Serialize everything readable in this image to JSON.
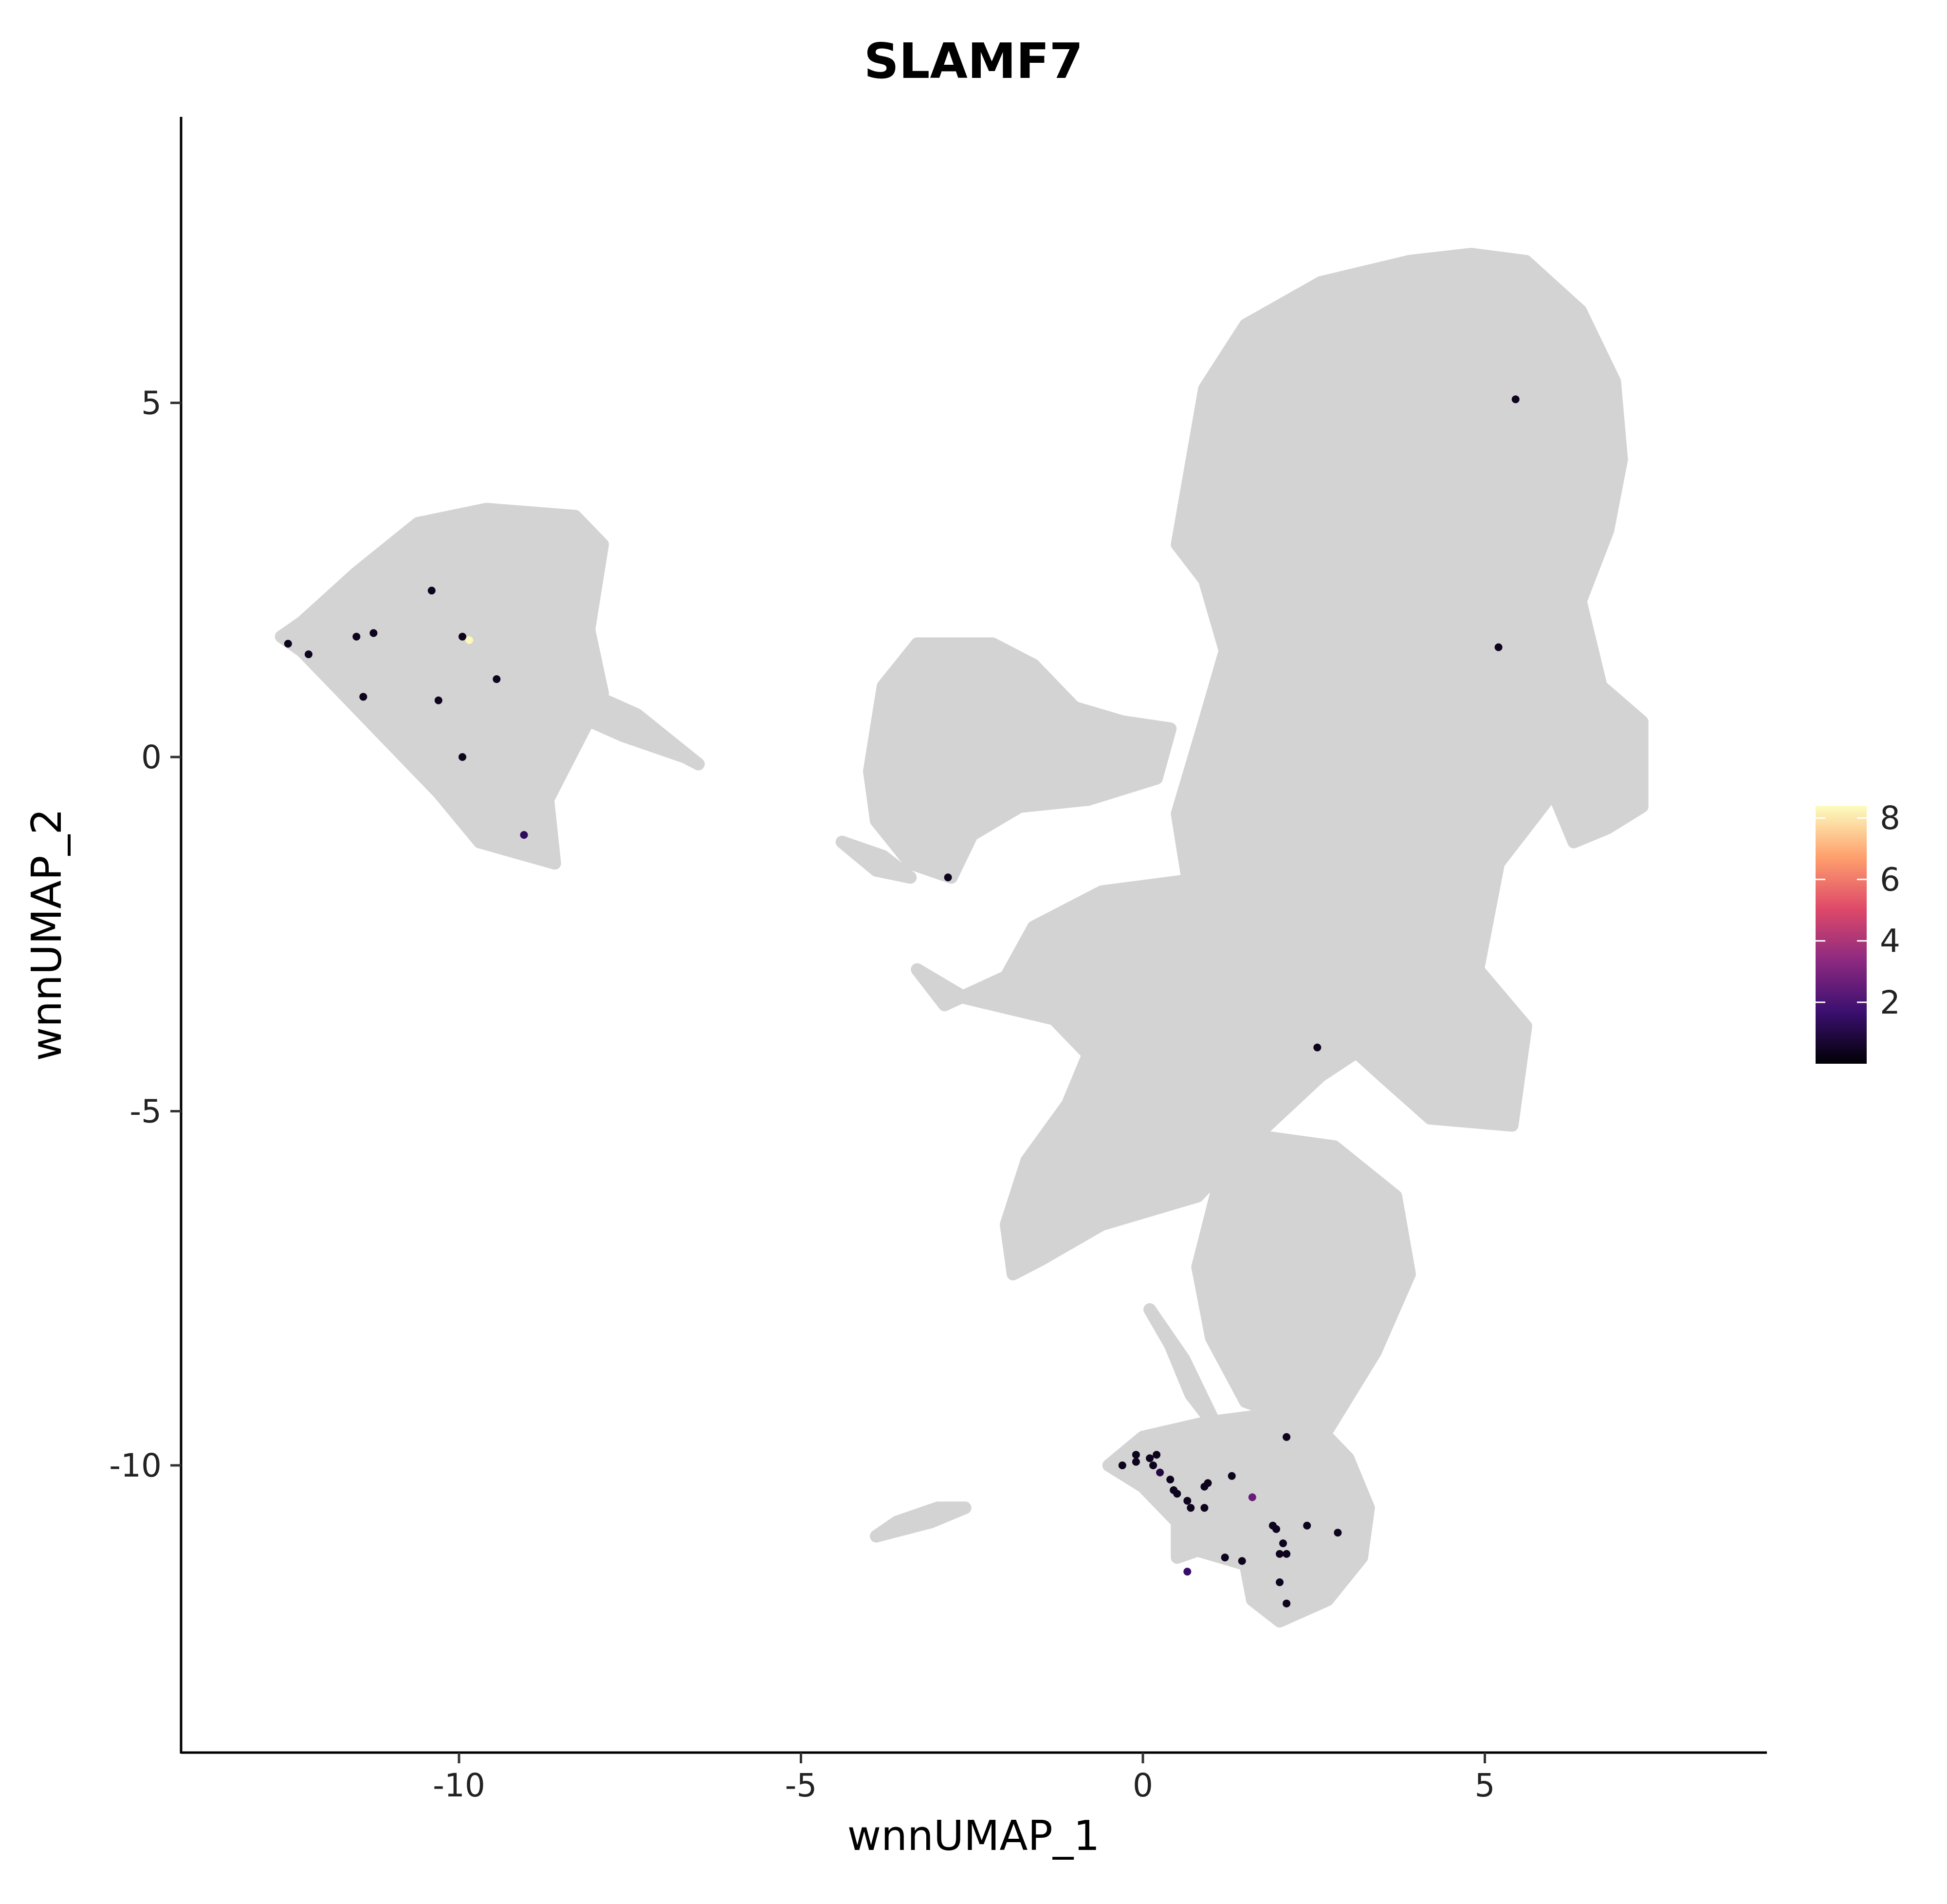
{
  "chart_data": {
    "type": "scatter",
    "title": "SLAMF7",
    "xlabel": "wnnUMAP_1",
    "ylabel": "wnnUMAP_2",
    "xlim": [
      -14.2,
      9
    ],
    "ylim": [
      -14,
      9
    ],
    "x_ticks": [
      {
        "value": -10,
        "label": "-10"
      },
      {
        "value": -5,
        "label": "-5"
      },
      {
        "value": 0,
        "label": "0"
      },
      {
        "value": 5,
        "label": "5"
      }
    ],
    "y_ticks": [
      {
        "value": 5,
        "label": "5"
      },
      {
        "value": 0,
        "label": "0"
      },
      {
        "value": -5,
        "label": "-5"
      },
      {
        "value": -10,
        "label": "-10"
      }
    ],
    "grid": false,
    "background_point_color": "#d3d3d3",
    "colorscale": {
      "name": "magma",
      "min": 0,
      "max": 8.4,
      "colors": [
        "#000004",
        "#3b0f70",
        "#8c2981",
        "#de4968",
        "#fe9f6d",
        "#fcfdbf"
      ],
      "ticks": [
        {
          "value": 2,
          "label": "2"
        },
        {
          "value": 4,
          "label": "4"
        },
        {
          "value": 6,
          "label": "6"
        },
        {
          "value": 8,
          "label": "8"
        }
      ],
      "legend_position": "right"
    },
    "background_clusters": [
      {
        "polygon": [
          [
            -12.6,
            1.7
          ],
          [
            -12.3,
            1.9
          ],
          [
            -11.5,
            2.6
          ],
          [
            -10.6,
            3.3
          ],
          [
            -9.6,
            3.5
          ],
          [
            -8.3,
            3.4
          ],
          [
            -7.9,
            3.0
          ],
          [
            -8.1,
            1.8
          ],
          [
            -7.9,
            0.9
          ],
          [
            -8.7,
            -0.6
          ],
          [
            -8.6,
            -1.5
          ],
          [
            -9.7,
            -1.2
          ],
          [
            -10.3,
            -0.5
          ],
          [
            -11.6,
            0.8
          ],
          [
            -12.3,
            1.5
          ]
        ]
      },
      {
        "polygon": [
          [
            -8.1,
            0.9
          ],
          [
            -7.4,
            0.6
          ],
          [
            -6.5,
            -0.1
          ],
          [
            -6.7,
            0.0
          ],
          [
            -7.6,
            0.3
          ],
          [
            -8.3,
            0.6
          ]
        ]
      },
      {
        "polygon": [
          [
            -4.0,
            -0.2
          ],
          [
            -3.8,
            1.0
          ],
          [
            -3.3,
            1.6
          ],
          [
            -2.2,
            1.6
          ],
          [
            -1.6,
            1.3
          ],
          [
            -1.0,
            0.7
          ],
          [
            -0.3,
            0.5
          ],
          [
            0.4,
            0.4
          ],
          [
            0.2,
            -0.3
          ],
          [
            -0.8,
            -0.6
          ],
          [
            -1.8,
            -0.7
          ],
          [
            -2.5,
            -1.1
          ],
          [
            -2.8,
            -1.7
          ],
          [
            -3.4,
            -1.5
          ],
          [
            -3.9,
            -0.9
          ]
        ]
      },
      {
        "polygon": [
          [
            -4.4,
            -1.2
          ],
          [
            -3.8,
            -1.4
          ],
          [
            -3.4,
            -1.7
          ],
          [
            -3.9,
            -1.6
          ]
        ]
      },
      {
        "polygon": [
          [
            0.5,
            3.0
          ],
          [
            0.9,
            5.2
          ],
          [
            1.5,
            6.1
          ],
          [
            2.6,
            6.7
          ],
          [
            3.9,
            7.0
          ],
          [
            4.8,
            7.1
          ],
          [
            5.6,
            7.0
          ],
          [
            6.4,
            6.3
          ],
          [
            6.9,
            5.3
          ],
          [
            7.0,
            4.2
          ],
          [
            6.8,
            3.2
          ],
          [
            6.4,
            2.2
          ],
          [
            6.7,
            1.0
          ],
          [
            7.3,
            0.5
          ],
          [
            7.3,
            -0.7
          ],
          [
            6.8,
            -1.0
          ],
          [
            6.3,
            -1.2
          ],
          [
            6.0,
            -0.5
          ],
          [
            5.2,
            -1.5
          ],
          [
            4.9,
            -3.0
          ],
          [
            5.6,
            -3.8
          ],
          [
            5.4,
            -5.2
          ],
          [
            4.2,
            -5.1
          ],
          [
            3.5,
            -4.5
          ],
          [
            2.7,
            -3.8
          ],
          [
            1.5,
            -3.6
          ],
          [
            0.8,
            -2.6
          ],
          [
            0.5,
            -0.8
          ],
          [
            0.9,
            0.5
          ],
          [
            1.2,
            1.5
          ],
          [
            0.9,
            2.5
          ]
        ]
      },
      {
        "polygon": [
          [
            -2.0,
            -3.1
          ],
          [
            -1.6,
            -2.4
          ],
          [
            -0.6,
            -1.9
          ],
          [
            1.0,
            -1.7
          ],
          [
            2.2,
            -2.2
          ],
          [
            3.5,
            -2.6
          ],
          [
            4.2,
            -3.0
          ],
          [
            3.7,
            -3.8
          ],
          [
            2.6,
            -4.5
          ],
          [
            1.6,
            -5.4
          ],
          [
            0.8,
            -6.2
          ],
          [
            -0.6,
            -6.6
          ],
          [
            -1.5,
            -7.1
          ],
          [
            -1.9,
            -7.3
          ],
          [
            -2.0,
            -6.6
          ],
          [
            -1.7,
            -5.7
          ],
          [
            -1.1,
            -4.9
          ],
          [
            -0.8,
            -4.2
          ],
          [
            -1.3,
            -3.7
          ],
          [
            -2.6,
            -3.4
          ],
          [
            -3.3,
            -3.0
          ],
          [
            -2.9,
            -3.5
          ]
        ]
      },
      {
        "polygon": [
          [
            1.3,
            -5.3
          ],
          [
            2.8,
            -5.5
          ],
          [
            3.7,
            -6.2
          ],
          [
            3.9,
            -7.3
          ],
          [
            3.4,
            -8.4
          ],
          [
            2.7,
            -9.5
          ],
          [
            1.5,
            -9.1
          ],
          [
            1.0,
            -8.2
          ],
          [
            0.8,
            -7.2
          ]
        ]
      },
      {
        "polygon": [
          [
            -0.5,
            -10.0
          ],
          [
            0.0,
            -9.6
          ],
          [
            0.9,
            -9.4
          ],
          [
            1.7,
            -9.3
          ],
          [
            2.5,
            -9.4
          ],
          [
            3.0,
            -9.9
          ],
          [
            3.3,
            -10.6
          ],
          [
            3.2,
            -11.3
          ],
          [
            2.7,
            -11.9
          ],
          [
            2.0,
            -12.2
          ],
          [
            1.6,
            -11.9
          ],
          [
            1.5,
            -11.4
          ],
          [
            0.8,
            -11.2
          ],
          [
            0.5,
            -11.3
          ],
          [
            0.5,
            -10.8
          ],
          [
            0.0,
            -10.3
          ]
        ]
      },
      {
        "polygon": [
          [
            0.1,
            -7.8
          ],
          [
            0.6,
            -8.5
          ],
          [
            1.0,
            -9.3
          ],
          [
            1.1,
            -9.5
          ],
          [
            0.7,
            -9.0
          ],
          [
            0.4,
            -8.3
          ]
        ]
      },
      {
        "polygon": [
          [
            -3.9,
            -11.0
          ],
          [
            -3.5,
            -10.9
          ],
          [
            -3.1,
            -10.8
          ],
          [
            -2.6,
            -10.6
          ],
          [
            -3.0,
            -10.6
          ],
          [
            -3.6,
            -10.8
          ]
        ]
      }
    ],
    "expressing_cells": [
      {
        "x": -12.5,
        "y": 1.6,
        "value": 0.4
      },
      {
        "x": -12.2,
        "y": 1.45,
        "value": 0.4
      },
      {
        "x": -11.5,
        "y": 1.7,
        "value": 0.4
      },
      {
        "x": -11.25,
        "y": 1.75,
        "value": 0.4
      },
      {
        "x": -11.4,
        "y": 0.85,
        "value": 0.4
      },
      {
        "x": -10.4,
        "y": 2.35,
        "value": 0.4
      },
      {
        "x": -10.3,
        "y": 0.8,
        "value": 0.4
      },
      {
        "x": -9.95,
        "y": 1.7,
        "value": 0.4
      },
      {
        "x": -9.85,
        "y": 1.65,
        "value": 8.3
      },
      {
        "x": -9.45,
        "y": 1.1,
        "value": 0.4
      },
      {
        "x": -9.95,
        "y": 0.0,
        "value": 0.4
      },
      {
        "x": -9.05,
        "y": -1.1,
        "value": 1.4
      },
      {
        "x": -2.85,
        "y": -1.7,
        "value": 0.4
      },
      {
        "x": 5.2,
        "y": 1.55,
        "value": 0.4
      },
      {
        "x": 5.45,
        "y": 5.05,
        "value": 0.4
      },
      {
        "x": 2.55,
        "y": -4.1,
        "value": 0.4
      },
      {
        "x": 2.1,
        "y": -9.6,
        "value": 0.4
      },
      {
        "x": -0.3,
        "y": -10.0,
        "value": 0.4
      },
      {
        "x": -0.1,
        "y": -9.85,
        "value": 0.4
      },
      {
        "x": -0.1,
        "y": -9.95,
        "value": 0.4
      },
      {
        "x": 0.1,
        "y": -9.9,
        "value": 0.4
      },
      {
        "x": 0.15,
        "y": -10.0,
        "value": 0.4
      },
      {
        "x": 0.2,
        "y": -9.85,
        "value": 0.4
      },
      {
        "x": 0.25,
        "y": -10.1,
        "value": 1.0
      },
      {
        "x": 0.4,
        "y": -10.2,
        "value": 0.4
      },
      {
        "x": 0.45,
        "y": -10.35,
        "value": 0.4
      },
      {
        "x": 0.5,
        "y": -10.4,
        "value": 0.4
      },
      {
        "x": 0.65,
        "y": -10.5,
        "value": 0.4
      },
      {
        "x": 0.7,
        "y": -10.6,
        "value": 0.4
      },
      {
        "x": 0.9,
        "y": -10.3,
        "value": 0.4
      },
      {
        "x": 0.95,
        "y": -10.25,
        "value": 0.4
      },
      {
        "x": 0.9,
        "y": -10.6,
        "value": 0.4
      },
      {
        "x": 1.3,
        "y": -10.15,
        "value": 0.4
      },
      {
        "x": 1.6,
        "y": -10.45,
        "value": 2.6
      },
      {
        "x": 1.9,
        "y": -10.85,
        "value": 0.4
      },
      {
        "x": 1.95,
        "y": -10.9,
        "value": 0.4
      },
      {
        "x": 2.05,
        "y": -11.1,
        "value": 0.4
      },
      {
        "x": 2.0,
        "y": -11.25,
        "value": 0.4
      },
      {
        "x": 2.1,
        "y": -11.25,
        "value": 0.4
      },
      {
        "x": 1.2,
        "y": -11.3,
        "value": 0.4
      },
      {
        "x": 1.45,
        "y": -11.35,
        "value": 0.4
      },
      {
        "x": 2.4,
        "y": -10.85,
        "value": 0.4
      },
      {
        "x": 2.85,
        "y": -10.95,
        "value": 0.4
      },
      {
        "x": 2.0,
        "y": -11.65,
        "value": 0.4
      },
      {
        "x": 2.1,
        "y": -11.95,
        "value": 0.4
      },
      {
        "x": 0.65,
        "y": -11.5,
        "value": 1.6
      }
    ]
  }
}
